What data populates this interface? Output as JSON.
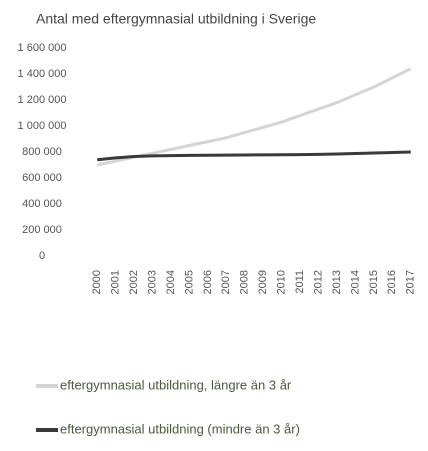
{
  "chart_data": {
    "type": "line",
    "title": "Antal med eftergymnasial utbildning i Sverige",
    "categories": [
      "2000",
      "2001",
      "2002",
      "2003",
      "2004",
      "2005",
      "2006",
      "2007",
      "2008",
      "2009",
      "2010",
      "2011",
      "2012",
      "2013",
      "2014",
      "2015",
      "2016",
      "2017"
    ],
    "series": [
      {
        "name": "eftergymnasial utbildning, längre än 3 år",
        "color": "#d4d4d4",
        "values": [
          700000,
          730000,
          760000,
          790000,
          820000,
          850000,
          880000,
          910000,
          950000,
          990000,
          1030000,
          1080000,
          1130000,
          1180000,
          1240000,
          1300000,
          1370000,
          1440000
        ]
      },
      {
        "name": "eftergymnasial utbildning (mindre än 3 år)",
        "color": "#3a3a3a",
        "values": [
          740000,
          755000,
          765000,
          770000,
          772000,
          774000,
          775000,
          776000,
          777000,
          778000,
          779000,
          780000,
          782000,
          785000,
          788000,
          792000,
          796000,
          800000
        ]
      }
    ],
    "ylim": [
      0,
      1600000
    ],
    "yticks": [
      0,
      {
        "value": 200000,
        "label": "200 000"
      },
      {
        "value": 400000,
        "label": "400 000"
      },
      {
        "value": 600000,
        "label": "600 000"
      },
      {
        "value": 800000,
        "label": "800 000"
      },
      {
        "value": 1000000,
        "label": "1 000 000"
      },
      {
        "value": 1200000,
        "label": "1 200 000"
      },
      {
        "value": 1400000,
        "label": "1 400 000"
      },
      {
        "value": 1600000,
        "label": "1 600 000"
      }
    ]
  }
}
